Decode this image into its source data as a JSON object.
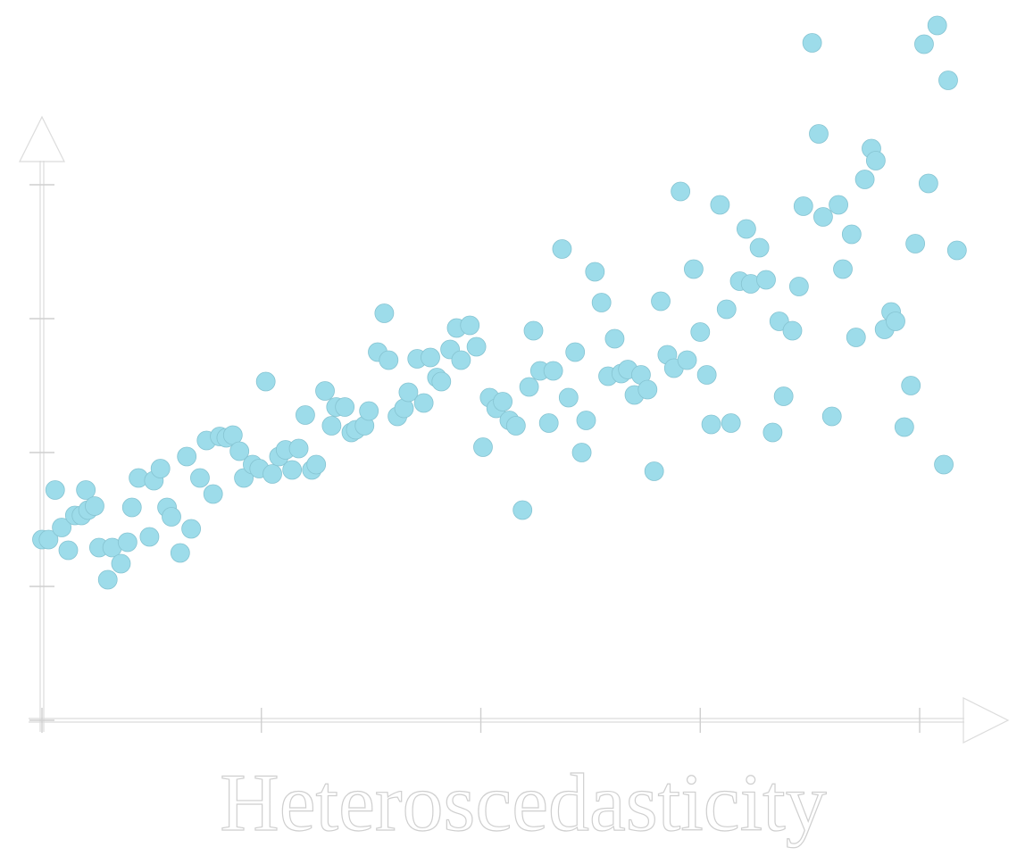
{
  "chart_data": {
    "type": "scatter",
    "title": "Heteroscedasticity",
    "color": "#9ddcea",
    "xlim": [
      0,
      4.48
    ],
    "ylim": [
      0,
      5.38
    ],
    "xticks": [
      0,
      1,
      2,
      3,
      4
    ],
    "yticks": [
      0,
      1,
      2,
      3,
      4
    ],
    "x": [
      0.0,
      0.03,
      0.06,
      0.09,
      0.12,
      0.15,
      0.18,
      0.2,
      0.21,
      0.24,
      0.26,
      0.3,
      0.32,
      0.36,
      0.39,
      0.41,
      0.44,
      0.49,
      0.51,
      0.54,
      0.57,
      0.59,
      0.63,
      0.66,
      0.68,
      0.72,
      0.75,
      0.78,
      0.81,
      0.84,
      0.87,
      0.9,
      0.92,
      0.96,
      0.99,
      1.02,
      1.05,
      1.08,
      1.11,
      1.14,
      1.17,
      1.2,
      1.23,
      1.25,
      1.29,
      1.32,
      1.34,
      1.38,
      1.41,
      1.43,
      1.47,
      1.49,
      1.53,
      1.56,
      1.58,
      1.62,
      1.65,
      1.67,
      1.71,
      1.74,
      1.77,
      1.8,
      1.82,
      1.86,
      1.89,
      1.91,
      1.95,
      1.98,
      2.01,
      2.04,
      2.07,
      2.1,
      2.13,
      2.16,
      2.19,
      2.22,
      2.24,
      2.27,
      2.31,
      2.33,
      2.37,
      2.4,
      2.43,
      2.46,
      2.48,
      2.52,
      2.55,
      2.58,
      2.61,
      2.64,
      2.67,
      2.7,
      2.73,
      2.76,
      2.79,
      2.82,
      2.85,
      2.88,
      2.91,
      2.94,
      2.97,
      3.0,
      3.03,
      3.05,
      3.09,
      3.12,
      3.14,
      3.18,
      3.21,
      3.23,
      3.27,
      3.3,
      3.33,
      3.36,
      3.38,
      3.42,
      3.45,
      3.47,
      3.51,
      3.54,
      3.56,
      3.6,
      3.63,
      3.65,
      3.69,
      3.71,
      3.75,
      3.78,
      3.8,
      3.84,
      3.87,
      3.89,
      3.93,
      3.96,
      3.98,
      4.02,
      4.04,
      4.08,
      4.11,
      4.13,
      4.17
    ],
    "values": [
      1.35,
      1.35,
      1.72,
      1.44,
      1.27,
      1.53,
      1.53,
      1.72,
      1.57,
      1.6,
      1.29,
      1.05,
      1.29,
      1.17,
      1.33,
      1.59,
      1.81,
      1.37,
      1.79,
      1.88,
      1.59,
      1.52,
      1.25,
      1.97,
      1.43,
      1.81,
      2.09,
      1.69,
      2.12,
      2.11,
      2.13,
      2.01,
      1.81,
      1.91,
      1.88,
      2.53,
      1.84,
      1.97,
      2.02,
      1.87,
      2.03,
      2.28,
      1.87,
      1.91,
      2.46,
      2.2,
      2.34,
      2.34,
      2.15,
      2.17,
      2.2,
      2.31,
      2.75,
      3.04,
      2.69,
      2.27,
      2.33,
      2.45,
      2.7,
      2.37,
      2.71,
      2.56,
      2.53,
      2.77,
      2.93,
      2.69,
      2.95,
      2.79,
      2.04,
      2.41,
      2.33,
      2.38,
      2.24,
      2.2,
      1.57,
      2.49,
      2.91,
      2.61,
      2.22,
      2.61,
      3.52,
      2.41,
      2.75,
      2.0,
      2.24,
      3.35,
      3.12,
      2.57,
      2.85,
      2.59,
      2.62,
      2.43,
      2.58,
      2.47,
      1.86,
      3.13,
      2.73,
      2.63,
      3.95,
      2.69,
      3.37,
      2.9,
      2.58,
      2.21,
      3.85,
      3.07,
      2.22,
      3.28,
      3.67,
      3.26,
      3.53,
      3.29,
      2.15,
      2.98,
      2.42,
      2.91,
      3.24,
      3.84,
      5.06,
      4.38,
      3.76,
      2.27,
      3.85,
      3.37,
      3.63,
      2.86,
      4.04,
      4.27,
      4.18,
      2.92,
      3.05,
      2.98,
      2.19,
      2.5,
      3.56,
      5.05,
      4.01,
      5.19,
      1.91,
      4.78,
      3.51
    ]
  }
}
